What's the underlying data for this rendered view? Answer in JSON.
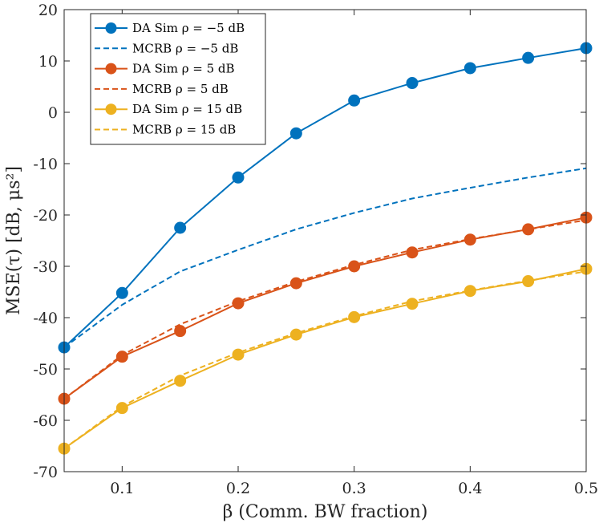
{
  "chart_data": {
    "type": "line",
    "xlabel": "β (Comm. BW fraction)",
    "ylabel": "MSE(τ) [dB, μs²]",
    "xlim": [
      0.05,
      0.5
    ],
    "ylim": [
      -70,
      20
    ],
    "grid": false,
    "legend_position": "top-left",
    "x": [
      0.05,
      0.1,
      0.15,
      0.2,
      0.25,
      0.3,
      0.35,
      0.4,
      0.45,
      0.5
    ],
    "x_tick_labels": [
      "0.1",
      "0.2",
      "0.3",
      "0.4",
      "0.5"
    ],
    "x_ticks": [
      0.1,
      0.2,
      0.3,
      0.4,
      0.5
    ],
    "y_tick_labels": [
      "-70",
      "-60",
      "-50",
      "-40",
      "-30",
      "-20",
      "-10",
      "0",
      "10",
      "20"
    ],
    "y_ticks": [
      -70,
      -60,
      -50,
      -40,
      -30,
      -20,
      -10,
      0,
      10,
      20
    ],
    "series": [
      {
        "name": "DA Sim ρ = −5 dB",
        "color": "#0072BD",
        "style": "solid-marker",
        "values": [
          -45.8,
          -35.2,
          -22.5,
          -12.7,
          -4.1,
          2.3,
          5.7,
          8.6,
          10.6,
          12.5
        ]
      },
      {
        "name": "MCRB ρ = −5 dB",
        "color": "#0072BD",
        "style": "dashed",
        "values": [
          -45.8,
          -37.5,
          -31.0,
          -26.8,
          -22.8,
          -19.6,
          -16.8,
          -14.7,
          -12.7,
          -10.9
        ]
      },
      {
        "name": "DA Sim ρ = 5 dB",
        "color": "#D95319",
        "style": "solid-marker",
        "values": [
          -55.8,
          -47.6,
          -42.6,
          -37.2,
          -33.3,
          -30.0,
          -27.3,
          -24.8,
          -22.8,
          -20.5
        ]
      },
      {
        "name": "MCRB ρ = 5 dB",
        "color": "#D95319",
        "style": "dashed",
        "values": [
          -55.8,
          -47.3,
          -41.3,
          -36.8,
          -33.0,
          -29.7,
          -26.8,
          -24.7,
          -22.8,
          -21.0
        ]
      },
      {
        "name": "DA Sim ρ = 15 dB",
        "color": "#EDB120",
        "style": "solid-marker",
        "values": [
          -65.5,
          -57.6,
          -52.3,
          -47.2,
          -43.3,
          -39.9,
          -37.3,
          -34.8,
          -32.9,
          -30.5
        ]
      },
      {
        "name": "MCRB ρ = 15 dB",
        "color": "#EDB120",
        "style": "dashed",
        "values": [
          -65.5,
          -57.3,
          -51.3,
          -46.8,
          -43.0,
          -39.7,
          -36.8,
          -34.7,
          -32.8,
          -31.0
        ]
      }
    ]
  }
}
